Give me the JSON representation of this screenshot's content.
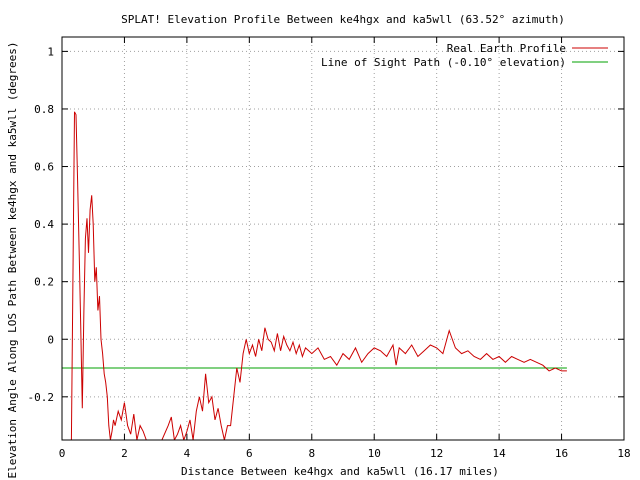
{
  "chart_data": {
    "type": "line",
    "title": "SPLAT! Elevation Profile Between ke4hgx and ka5wll (63.52° azimuth)",
    "xlabel": "Distance Between ke4hgx and ka5wll (16.17 miles)",
    "ylabel": "Elevation Angle Along LOS Path Between ke4hgx and ka5wll (degrees)",
    "xlim": [
      0,
      18
    ],
    "ylim": [
      -0.35,
      1.05
    ],
    "xticks": [
      0,
      2,
      4,
      6,
      8,
      10,
      12,
      14,
      16,
      18
    ],
    "xtick_labels": [
      "0",
      "2",
      "4",
      "6",
      "8",
      "10",
      "12",
      "14",
      "16",
      "18"
    ],
    "yticks": [
      -0.2,
      0,
      0.2,
      0.4,
      0.6,
      0.8,
      1
    ],
    "ytick_labels": [
      "-0.2",
      "0",
      "0.2",
      "0.4",
      "0.6",
      "0.8",
      "1"
    ],
    "grid": true,
    "legend_position": "top-right",
    "series": [
      {
        "name": "Real Earth Profile",
        "color": "#cc0000",
        "x": [
          0.3,
          0.35,
          0.4,
          0.45,
          0.5,
          0.55,
          0.6,
          0.65,
          0.7,
          0.75,
          0.8,
          0.85,
          0.9,
          0.95,
          1.0,
          1.05,
          1.1,
          1.15,
          1.2,
          1.25,
          1.3,
          1.35,
          1.4,
          1.45,
          1.5,
          1.55,
          1.6,
          1.65,
          1.7,
          1.8,
          1.9,
          2.0,
          2.1,
          2.2,
          2.3,
          2.4,
          2.5,
          2.6,
          2.7,
          2.8,
          2.9,
          3.0,
          3.2,
          3.4,
          3.5,
          3.6,
          3.7,
          3.8,
          3.9,
          4.0,
          4.1,
          4.2,
          4.3,
          4.4,
          4.5,
          4.6,
          4.7,
          4.8,
          4.9,
          5.0,
          5.1,
          5.2,
          5.3,
          5.4,
          5.5,
          5.6,
          5.7,
          5.8,
          5.9,
          6.0,
          6.1,
          6.2,
          6.3,
          6.4,
          6.5,
          6.6,
          6.7,
          6.8,
          6.9,
          7.0,
          7.1,
          7.2,
          7.3,
          7.4,
          7.5,
          7.6,
          7.7,
          7.8,
          7.9,
          8.0,
          8.2,
          8.4,
          8.6,
          8.8,
          9.0,
          9.2,
          9.4,
          9.6,
          9.8,
          10.0,
          10.2,
          10.4,
          10.6,
          10.7,
          10.8,
          11.0,
          11.2,
          11.4,
          11.6,
          11.8,
          12.0,
          12.2,
          12.4,
          12.6,
          12.8,
          13.0,
          13.2,
          13.4,
          13.6,
          13.8,
          14.0,
          14.2,
          14.4,
          14.6,
          14.8,
          15.0,
          15.2,
          15.4,
          15.6,
          15.8,
          16.0,
          16.17
        ],
        "y": [
          -0.35,
          0.2,
          0.79,
          0.78,
          0.55,
          0.3,
          0.05,
          -0.24,
          0.1,
          0.35,
          0.42,
          0.3,
          0.45,
          0.5,
          0.4,
          0.2,
          0.25,
          0.1,
          0.15,
          0.0,
          -0.05,
          -0.12,
          -0.15,
          -0.2,
          -0.3,
          -0.35,
          -0.32,
          -0.28,
          -0.3,
          -0.25,
          -0.28,
          -0.22,
          -0.3,
          -0.33,
          -0.26,
          -0.35,
          -0.3,
          -0.32,
          -0.35,
          -0.35,
          -0.35,
          -0.35,
          -0.35,
          -0.3,
          -0.27,
          -0.35,
          -0.33,
          -0.3,
          -0.35,
          -0.32,
          -0.28,
          -0.35,
          -0.25,
          -0.2,
          -0.25,
          -0.12,
          -0.22,
          -0.2,
          -0.28,
          -0.24,
          -0.3,
          -0.35,
          -0.3,
          -0.3,
          -0.2,
          -0.1,
          -0.15,
          -0.05,
          0.0,
          -0.05,
          -0.02,
          -0.06,
          0.0,
          -0.04,
          0.04,
          0.0,
          -0.01,
          -0.04,
          0.02,
          -0.04,
          0.01,
          -0.02,
          -0.04,
          -0.01,
          -0.05,
          -0.02,
          -0.06,
          -0.03,
          -0.04,
          -0.05,
          -0.03,
          -0.07,
          -0.06,
          -0.09,
          -0.05,
          -0.07,
          -0.03,
          -0.08,
          -0.05,
          -0.03,
          -0.04,
          -0.06,
          -0.02,
          -0.09,
          -0.03,
          -0.05,
          -0.02,
          -0.06,
          -0.04,
          -0.02,
          -0.03,
          -0.05,
          0.03,
          -0.03,
          -0.05,
          -0.04,
          -0.06,
          -0.07,
          -0.05,
          -0.07,
          -0.06,
          -0.08,
          -0.06,
          -0.07,
          -0.08,
          -0.07,
          -0.08,
          -0.09,
          -0.11,
          -0.1,
          -0.11,
          -0.11
        ]
      },
      {
        "name": "Line of Sight Path (-0.10° elevation)",
        "color": "#00a000",
        "x": [
          0,
          16.17
        ],
        "y": [
          -0.1,
          -0.1
        ]
      }
    ]
  }
}
